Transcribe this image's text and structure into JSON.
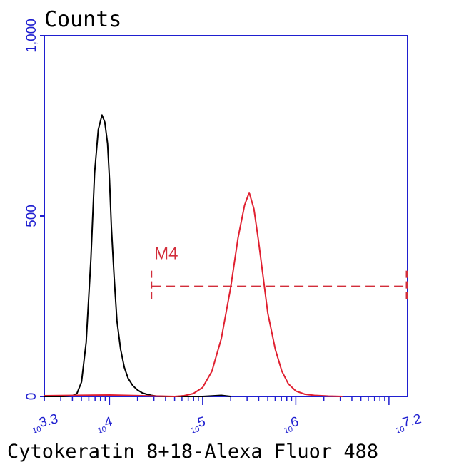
{
  "chart_data": {
    "type": "line",
    "ylabel": "Counts",
    "xlabel": "Cytokeratin 8+18-Alexa Fluor 488",
    "x_scale": "log",
    "xlim_exponent": [
      3.3,
      7.2
    ],
    "ylim": [
      0,
      1000
    ],
    "y_ticks": [
      {
        "value": 0,
        "label": "0"
      },
      {
        "value": 500,
        "label": "500"
      },
      {
        "value": 1000,
        "label": "1,000"
      }
    ],
    "x_ticks": [
      {
        "exponent": 3.3,
        "base": "10",
        "exp_label": "3.3"
      },
      {
        "exponent": 4,
        "base": "10",
        "exp_label": "4"
      },
      {
        "exponent": 5,
        "base": "10",
        "exp_label": "5"
      },
      {
        "exponent": 6,
        "base": "10",
        "exp_label": "6"
      },
      {
        "exponent": 7.2,
        "base": "10",
        "exp_label": "7.2"
      }
    ],
    "colors": {
      "axis": "#1f1fd0",
      "control": "#000000",
      "sample": "#e02030",
      "marker": "#d22d3a"
    },
    "series": [
      {
        "color": "#000000",
        "x_exponent": [
          3.3,
          3.5,
          3.6,
          3.65,
          3.7,
          3.75,
          3.8,
          3.84,
          3.88,
          3.92,
          3.95,
          3.98,
          4.0,
          4.02,
          4.05,
          4.08,
          4.12,
          4.16,
          4.2,
          4.25,
          4.3,
          4.35,
          4.4,
          4.45,
          4.5,
          4.6,
          5.0,
          5.2,
          5.3
        ],
        "y": [
          0,
          0,
          2,
          8,
          40,
          150,
          380,
          620,
          740,
          780,
          760,
          700,
          600,
          470,
          330,
          210,
          130,
          80,
          50,
          30,
          18,
          10,
          6,
          3,
          1,
          0,
          0,
          3,
          0
        ]
      },
      {
        "color": "#e02030",
        "x_exponent": [
          3.3,
          4.0,
          4.7,
          4.8,
          4.9,
          5.0,
          5.1,
          5.2,
          5.3,
          5.38,
          5.45,
          5.5,
          5.55,
          5.6,
          5.65,
          5.7,
          5.78,
          5.85,
          5.92,
          6.0,
          6.1,
          6.2,
          6.35,
          6.5
        ],
        "y": [
          2,
          4,
          0,
          2,
          8,
          25,
          70,
          160,
          300,
          440,
          530,
          565,
          520,
          430,
          330,
          230,
          130,
          70,
          35,
          15,
          6,
          3,
          1,
          0
        ]
      }
    ],
    "marker": {
      "label": "M4",
      "x_start_exponent": 4.45,
      "x_end_exponent": 7.2,
      "y": 305
    }
  }
}
